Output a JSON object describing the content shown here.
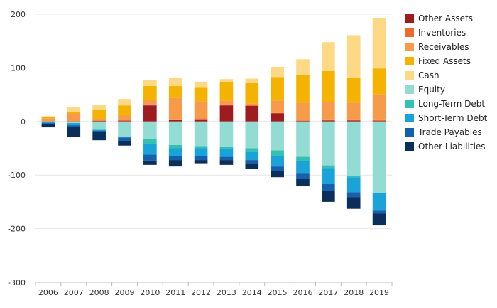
{
  "chart_data": {
    "type": "bar",
    "stacked": true,
    "title": "",
    "xlabel": "",
    "ylabel": "",
    "ylim": [
      -300,
      200
    ],
    "yticks": [
      200,
      100,
      0,
      -100,
      -200,
      -300
    ],
    "grid": true,
    "legend_position": "right",
    "categories": [
      "2006",
      "2007",
      "2008",
      "2009",
      "2010",
      "2011",
      "2012",
      "2013",
      "2014",
      "2015",
      "2016",
      "2017",
      "2018",
      "2019"
    ],
    "series": [
      {
        "name": "Other Assets",
        "color": "#9e1b20",
        "values": [
          0,
          0,
          1,
          1,
          30,
          3,
          4,
          30,
          29,
          15,
          1,
          2,
          2,
          1
        ]
      },
      {
        "name": "Inventories",
        "color": "#ee6a2a",
        "values": [
          0,
          1,
          1,
          2,
          2,
          1,
          2,
          1,
          2,
          1,
          1,
          2,
          2,
          3
        ]
      },
      {
        "name": "Receivables",
        "color": "#f79a4a",
        "values": [
          6,
          14,
          3,
          8,
          8,
          40,
          32,
          8,
          3,
          23,
          33,
          32,
          31,
          47
        ]
      },
      {
        "name": "Fixed Assets",
        "color": "#f5b301",
        "values": [
          2,
          3,
          16,
          19,
          26,
          22,
          25,
          35,
          38,
          44,
          52,
          58,
          47,
          48
        ]
      },
      {
        "name": "Cash",
        "color": "#fdd986",
        "values": [
          2,
          9,
          10,
          12,
          11,
          16,
          11,
          5,
          8,
          19,
          29,
          54,
          79,
          93
        ]
      },
      {
        "name": "Equity",
        "color": "#93dcd3",
        "values": [
          0,
          -3,
          -15,
          -28,
          -32,
          -44,
          -46,
          -48,
          -50,
          -54,
          -66,
          -82,
          -101,
          -133
        ]
      },
      {
        "name": "Long-Term Debt",
        "color": "#35c0b4",
        "values": [
          0,
          0,
          -1,
          0,
          -10,
          -6,
          -4,
          -4,
          -7,
          -10,
          -8,
          -5,
          -3,
          0
        ]
      },
      {
        "name": "Short-Term Debt",
        "color": "#1aa3d9",
        "values": [
          -3,
          -4,
          -1,
          -2,
          -20,
          -14,
          -14,
          -14,
          -15,
          -20,
          -22,
          -30,
          -28,
          -32
        ]
      },
      {
        "name": "Trade Payables",
        "color": "#1560ad",
        "values": [
          -2,
          -3,
          -3,
          -6,
          -11,
          -8,
          -8,
          -6,
          -6,
          -8,
          -11,
          -13,
          -9,
          -7
        ]
      },
      {
        "name": "Other Liabilities",
        "color": "#0b2f5b",
        "values": [
          -6,
          -19,
          -15,
          -9,
          -8,
          -12,
          -6,
          -9,
          -10,
          -12,
          -14,
          -20,
          -22,
          -22
        ]
      }
    ]
  }
}
